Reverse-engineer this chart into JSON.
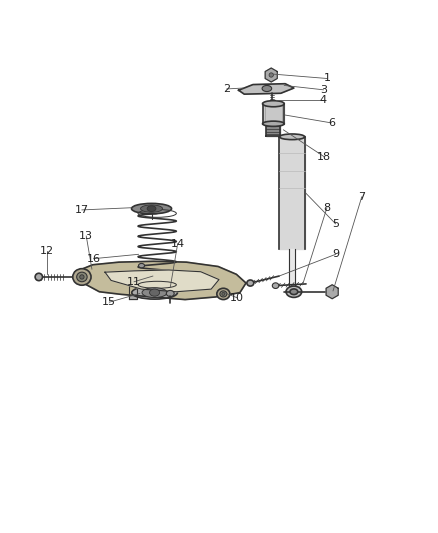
{
  "title": "",
  "background_color": "#ffffff",
  "fig_width": 4.38,
  "fig_height": 5.33,
  "dpi": 100,
  "line_color": "#333333",
  "label_color": "#222222",
  "label_fontsize": 8,
  "callout_line_color": "#555555"
}
